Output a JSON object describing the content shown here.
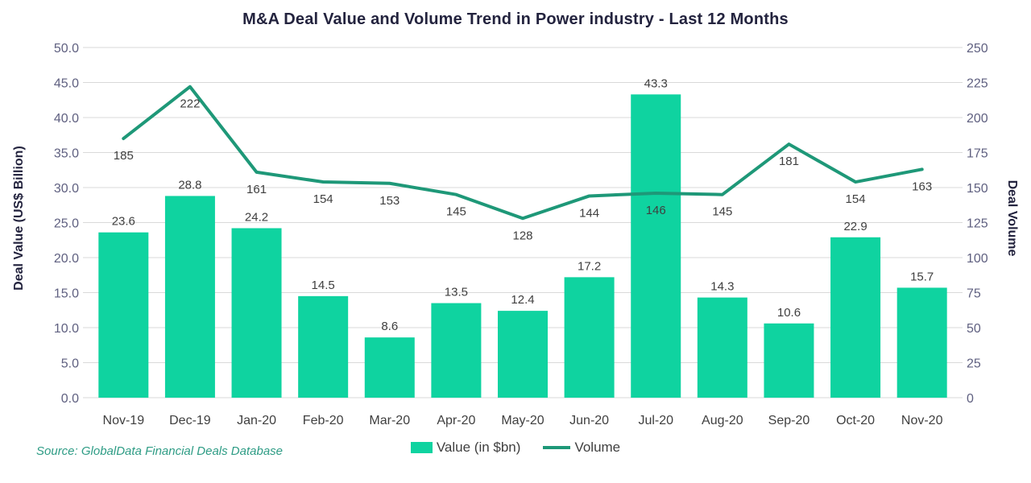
{
  "source_note": "Source: GlobalData Financial Deals Database",
  "colors": {
    "bar": "#0FD3A0",
    "line": "#1E9878",
    "title": "#23233E",
    "axis_title": "#23233E",
    "tick_label": "#5F6080",
    "data_label": "#3F3F3F",
    "x_label": "#3F3F3F",
    "grid": "#D9D9D9",
    "source": "#2E9C85"
  },
  "legend": {
    "value_label": "Value (in $bn)",
    "volume_label": "Volume"
  },
  "chart_data": {
    "type": "bar+line combo, dual axis",
    "title": "M&A Deal Value and Volume Trend in Power industry - Last 12 Months",
    "categories": [
      "Nov-19",
      "Dec-19",
      "Jan-20",
      "Feb-20",
      "Mar-20",
      "Apr-20",
      "May-20",
      "Jun-20",
      "Jul-20",
      "Aug-20",
      "Sep-20",
      "Oct-20",
      "Nov-20"
    ],
    "series": [
      {
        "name": "Value (in $bn)",
        "type": "bar",
        "axis": "left",
        "values": [
          23.6,
          28.8,
          24.2,
          14.5,
          8.6,
          13.5,
          12.4,
          17.2,
          43.3,
          14.3,
          10.6,
          22.9,
          15.7
        ],
        "labels": [
          "23.6",
          "28.8",
          "24.2",
          "14.5",
          "8.6",
          "13.5",
          "12.4",
          "17.2",
          "43.3",
          "14.3",
          "10.6",
          "22.9",
          "15.7"
        ]
      },
      {
        "name": "Volume",
        "type": "line",
        "axis": "right",
        "values": [
          185,
          222,
          161,
          154,
          153,
          145,
          128,
          144,
          146,
          145,
          181,
          154,
          163
        ],
        "labels": [
          "185",
          "222",
          "161",
          "154",
          "153",
          "145",
          "128",
          "144",
          "146",
          "145",
          "181",
          "154",
          "163"
        ]
      }
    ],
    "left_axis": {
      "label": "Deal Value (US$ Billion)",
      "min": 0,
      "max": 50,
      "step": 5,
      "ticks": [
        "0.0",
        "5.0",
        "10.0",
        "15.0",
        "20.0",
        "25.0",
        "30.0",
        "35.0",
        "40.0",
        "45.0",
        "50.0"
      ]
    },
    "right_axis": {
      "label": "Deal Volume",
      "min": 0,
      "max": 250,
      "step": 25,
      "ticks": [
        "0",
        "25",
        "50",
        "75",
        "100",
        "125",
        "150",
        "175",
        "200",
        "225",
        "250"
      ]
    },
    "grid": true,
    "legend_position": "bottom"
  }
}
